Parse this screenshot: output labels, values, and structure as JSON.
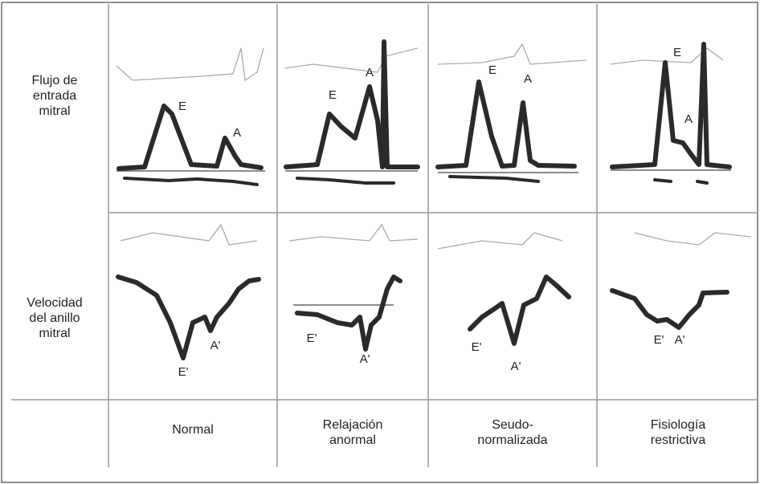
{
  "row_labels": [
    [
      "Flujo de",
      "entrada",
      "mitral"
    ],
    [
      "Velocidad",
      "del anillo",
      "mitral"
    ]
  ],
  "column_labels": [
    [
      "Normal"
    ],
    [
      "Relajación",
      "anormal"
    ],
    [
      "Seudo-",
      "normalizada"
    ],
    [
      "Fisiología",
      "restrictiva"
    ]
  ],
  "inflow_waves": [
    [
      "E",
      "A"
    ],
    [
      "E",
      "A"
    ],
    [
      "E",
      "A"
    ],
    [
      "E",
      "A"
    ]
  ],
  "annulus_waves": [
    [
      "E'",
      "A'"
    ],
    [
      "E'",
      "A'"
    ],
    [
      "E'",
      "A'"
    ],
    [
      "E'",
      "A'"
    ]
  ]
}
